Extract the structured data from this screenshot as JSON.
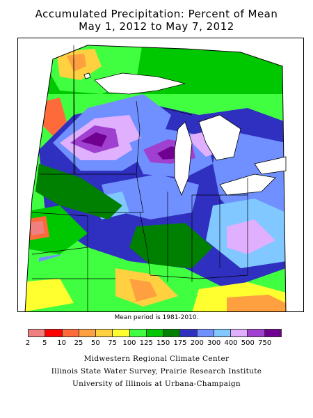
{
  "title": {
    "line1": "Accumulated Precipitation: Percent of Mean",
    "line2": "May 1, 2012 to May 7, 2012"
  },
  "note": "Mean period is 1981-2010.",
  "legend": {
    "labels": [
      "2",
      "5",
      "10",
      "25",
      "50",
      "75",
      "100",
      "125",
      "150",
      "175",
      "200",
      "300",
      "400",
      "500",
      "750"
    ],
    "colors": [
      "#f08080",
      "#ff0000",
      "#ff6a3a",
      "#ffa040",
      "#ffd040",
      "#ffff30",
      "#40ff40",
      "#00c800",
      "#008000",
      "#3030c0",
      "#7090ff",
      "#80c8ff",
      "#e0b0ff",
      "#a040d0",
      "#700090"
    ]
  },
  "credits": {
    "line1": "Midwestern Regional Climate Center",
    "line2": "Illinois State Water Survey, Prairie Research Institute",
    "line3": "University of Illinois at Urbana-Champaign"
  }
}
